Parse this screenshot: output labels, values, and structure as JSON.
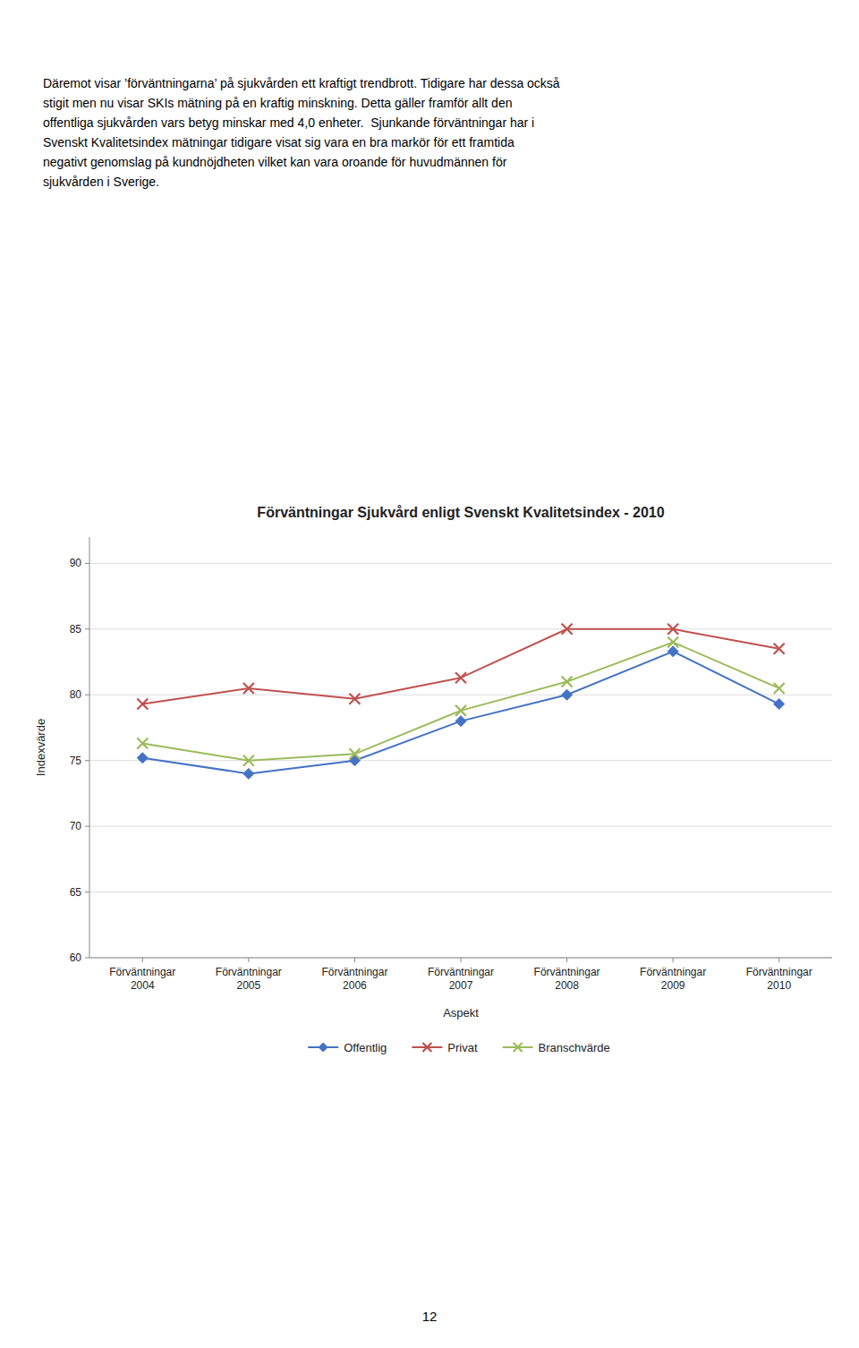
{
  "chart_data": {
    "type": "line",
    "title": "Förväntningar Sjukvård enligt Svenskt Kvalitetsindex - 2010",
    "xlabel": "Aspekt",
    "ylabel": "Indexvärde",
    "categories": [
      "Förväntningar\n2004",
      "Förväntningar\n2005",
      "Förväntningar\n2006",
      "Förväntningar\n2007",
      "Förväntningar\n2008",
      "Förväntningar\n2009",
      "Förväntningar\n2010"
    ],
    "series": [
      {
        "name": "Offentlig",
        "color": "#4472C4",
        "marker": "diamond",
        "values": [
          75.2,
          74.0,
          75.0,
          78.0,
          80.0,
          83.3,
          79.3
        ]
      },
      {
        "name": "Privat",
        "color": "#C0504D",
        "marker": "x",
        "values": [
          79.3,
          80.5,
          79.7,
          81.3,
          85.0,
          85.0,
          83.5
        ]
      },
      {
        "name": "Branschvärde",
        "color": "#9BBB59",
        "marker": "x",
        "values": [
          76.3,
          75.0,
          75.5,
          78.8,
          81.0,
          84.0,
          80.5
        ]
      }
    ],
    "ylim": [
      60,
      92
    ],
    "yticks": [
      60,
      65,
      70,
      75,
      80,
      85,
      90
    ],
    "grid": true,
    "legend": "bottom",
    "annotations": [
      "Däremot visar ’förväntningarna’ på sjukvården ett kraftigt trendbrott. Tidigare har dessa också",
      "stigit men nu visar SKIs mätning på en kraftig minskning. Detta gäller framför allt den",
      "offentliga sjukvården vars betyg minskar med 4,0 enheter.  Sjunkande förväntningar har i",
      "Svenskt Kvalitetsindex mätningar tidigare visat sig vara en bra markör för ett framtida",
      "negativt genomslag på kundnöjdheten vilket kan vara oroande för huvudmännen för",
      "sjukvården i Sverige.",
      "12"
    ]
  }
}
